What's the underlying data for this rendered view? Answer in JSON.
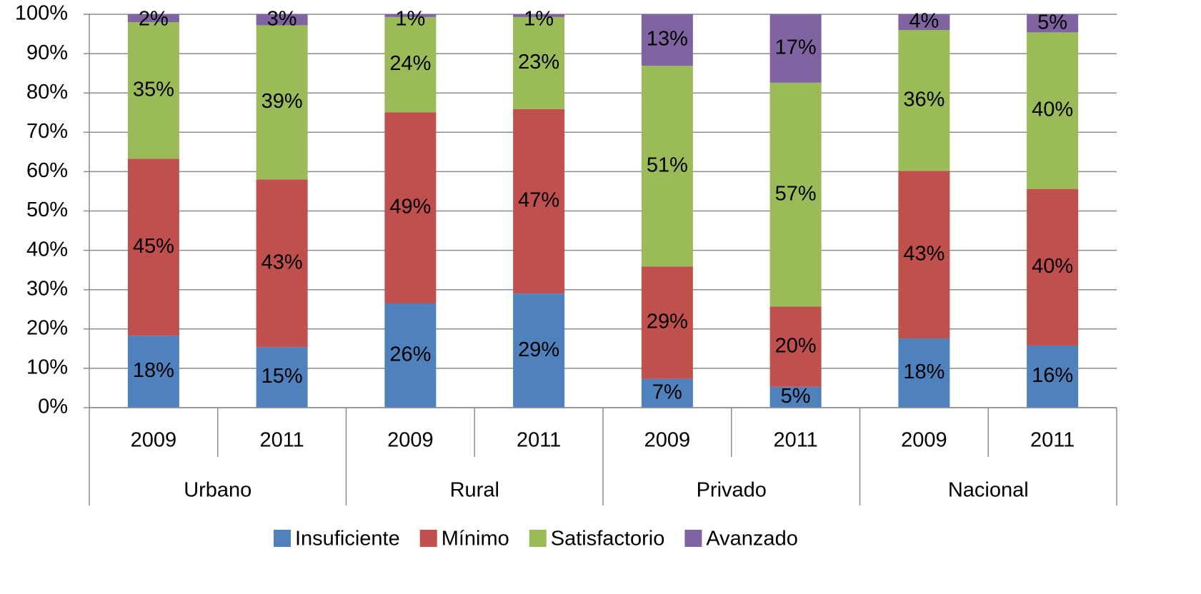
{
  "chart_data": {
    "type": "stacked_bar",
    "categories": [
      "2009",
      "2011",
      "2009",
      "2011",
      "2009",
      "2011",
      "2009",
      "2011"
    ],
    "groups": [
      "Urbano",
      "Rural",
      "Privado",
      "Nacional"
    ],
    "series": [
      {
        "name": "Insuficiente",
        "color": "#4f81bd",
        "values": [
          18.3,
          15.4,
          26.5,
          29.0,
          7.3,
          5.3,
          17.6,
          15.8
        ],
        "value_labels": [
          "18%",
          "15%",
          "26%",
          "29%",
          "7%",
          "5%",
          "18%",
          "16%"
        ]
      },
      {
        "name": "Mínimo",
        "color": "#c0504d",
        "values": [
          45.0,
          42.6,
          48.6,
          46.9,
          28.6,
          20.4,
          42.6,
          39.8
        ],
        "value_labels": [
          "45%",
          "43%",
          "49%",
          "47%",
          "29%",
          "20%",
          "43%",
          "40%"
        ]
      },
      {
        "name": "Satisfactorio",
        "color": "#9bbb59",
        "values": [
          34.7,
          39.2,
          24.2,
          23.4,
          51.0,
          56.9,
          35.8,
          39.8
        ],
        "value_labels": [
          "35%",
          "39%",
          "24%",
          "23%",
          "51%",
          "57%",
          "36%",
          "40%"
        ]
      },
      {
        "name": "Avanzado",
        "color": "#8064a2",
        "values": [
          2.0,
          2.8,
          0.7,
          0.7,
          13.1,
          17.4,
          4.0,
          4.6
        ],
        "value_labels": [
          "2%",
          "3%",
          "1%",
          "1%",
          "13%",
          "17%",
          "4%",
          "5%"
        ]
      }
    ],
    "ylim": [
      0,
      100
    ],
    "yticks": [
      {
        "value": 0,
        "label": "0%"
      },
      {
        "value": 10,
        "label": "10%"
      },
      {
        "value": 20,
        "label": "20%"
      },
      {
        "value": 30,
        "label": "30%"
      },
      {
        "value": 40,
        "label": "40%"
      },
      {
        "value": 50,
        "label": "50%"
      },
      {
        "value": 60,
        "label": "60%"
      },
      {
        "value": 70,
        "label": "70%"
      },
      {
        "value": 80,
        "label": "80%"
      },
      {
        "value": 90,
        "label": "90%"
      },
      {
        "value": 100,
        "label": "100%"
      }
    ],
    "grid": true,
    "legend": "bottom"
  }
}
